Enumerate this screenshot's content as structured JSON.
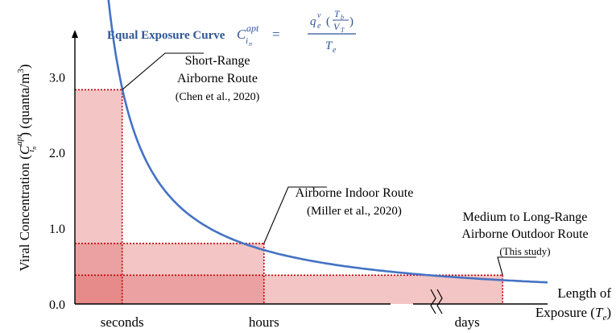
{
  "chart_data": {
    "type": "line",
    "title": "Equal Exposure Curve",
    "formula": {
      "lhs_base": "C",
      "lhs_sub": "i",
      "lhs_sub_sub": "n",
      "lhs_sup": "apt",
      "equals": "=",
      "num_base": "q",
      "num_sub": "e",
      "num_sup": "v",
      "frac_top": "T",
      "frac_top_sub": "b",
      "frac_bot": "V",
      "frac_bot_sub": "T",
      "den_base": "T",
      "den_sub": "e"
    },
    "ylabel": {
      "prefix": "Viral Concentration (",
      "base": "C",
      "sub": "i",
      "sub_sub": "n",
      "sup": "apt",
      "suffix": ") (quanta/m",
      "unit_sup": "3",
      "close": ")"
    },
    "xlabel": {
      "line1": "Length of",
      "line2_prefix": "Exposure (",
      "line2_var": "T",
      "line2_sub": "e",
      "line2_close": ")"
    },
    "ylim": [
      0,
      3.6
    ],
    "yticks": [
      "0.0",
      "1.0",
      "2.0",
      "3.0"
    ],
    "ytick_values": [
      0,
      1,
      2,
      3
    ],
    "xlim": [
      0,
      1
    ],
    "x_categories": [
      {
        "label": "seconds",
        "x": 0.1
      },
      {
        "label": "hours",
        "x": 0.4
      },
      {
        "label": "days",
        "x": 0.83
      }
    ],
    "axis_break_x": 0.765,
    "curve": {
      "k": 0.285,
      "x_start": 0.063,
      "x_end": 1.0,
      "color": "#4472C4"
    },
    "points": [
      {
        "name": "short-range",
        "x": 0.1,
        "y": 2.83,
        "lines": [
          "Short-Range",
          "Airborne Route",
          "(Chen et al., 2020)"
        ]
      },
      {
        "name": "indoor",
        "x": 0.4,
        "y": 0.8,
        "lines": [
          "Airborne Indoor Route",
          "(Miller et al., 2020)"
        ]
      },
      {
        "name": "outdoor",
        "x": 0.905,
        "y": 0.38,
        "lines": [
          "Medium to Long-Range",
          "Airborne Outdoor Route",
          "(This study)"
        ]
      }
    ],
    "fill_color": "#E06666",
    "guide_color": "#C00000",
    "grid": false,
    "legend": "none"
  }
}
